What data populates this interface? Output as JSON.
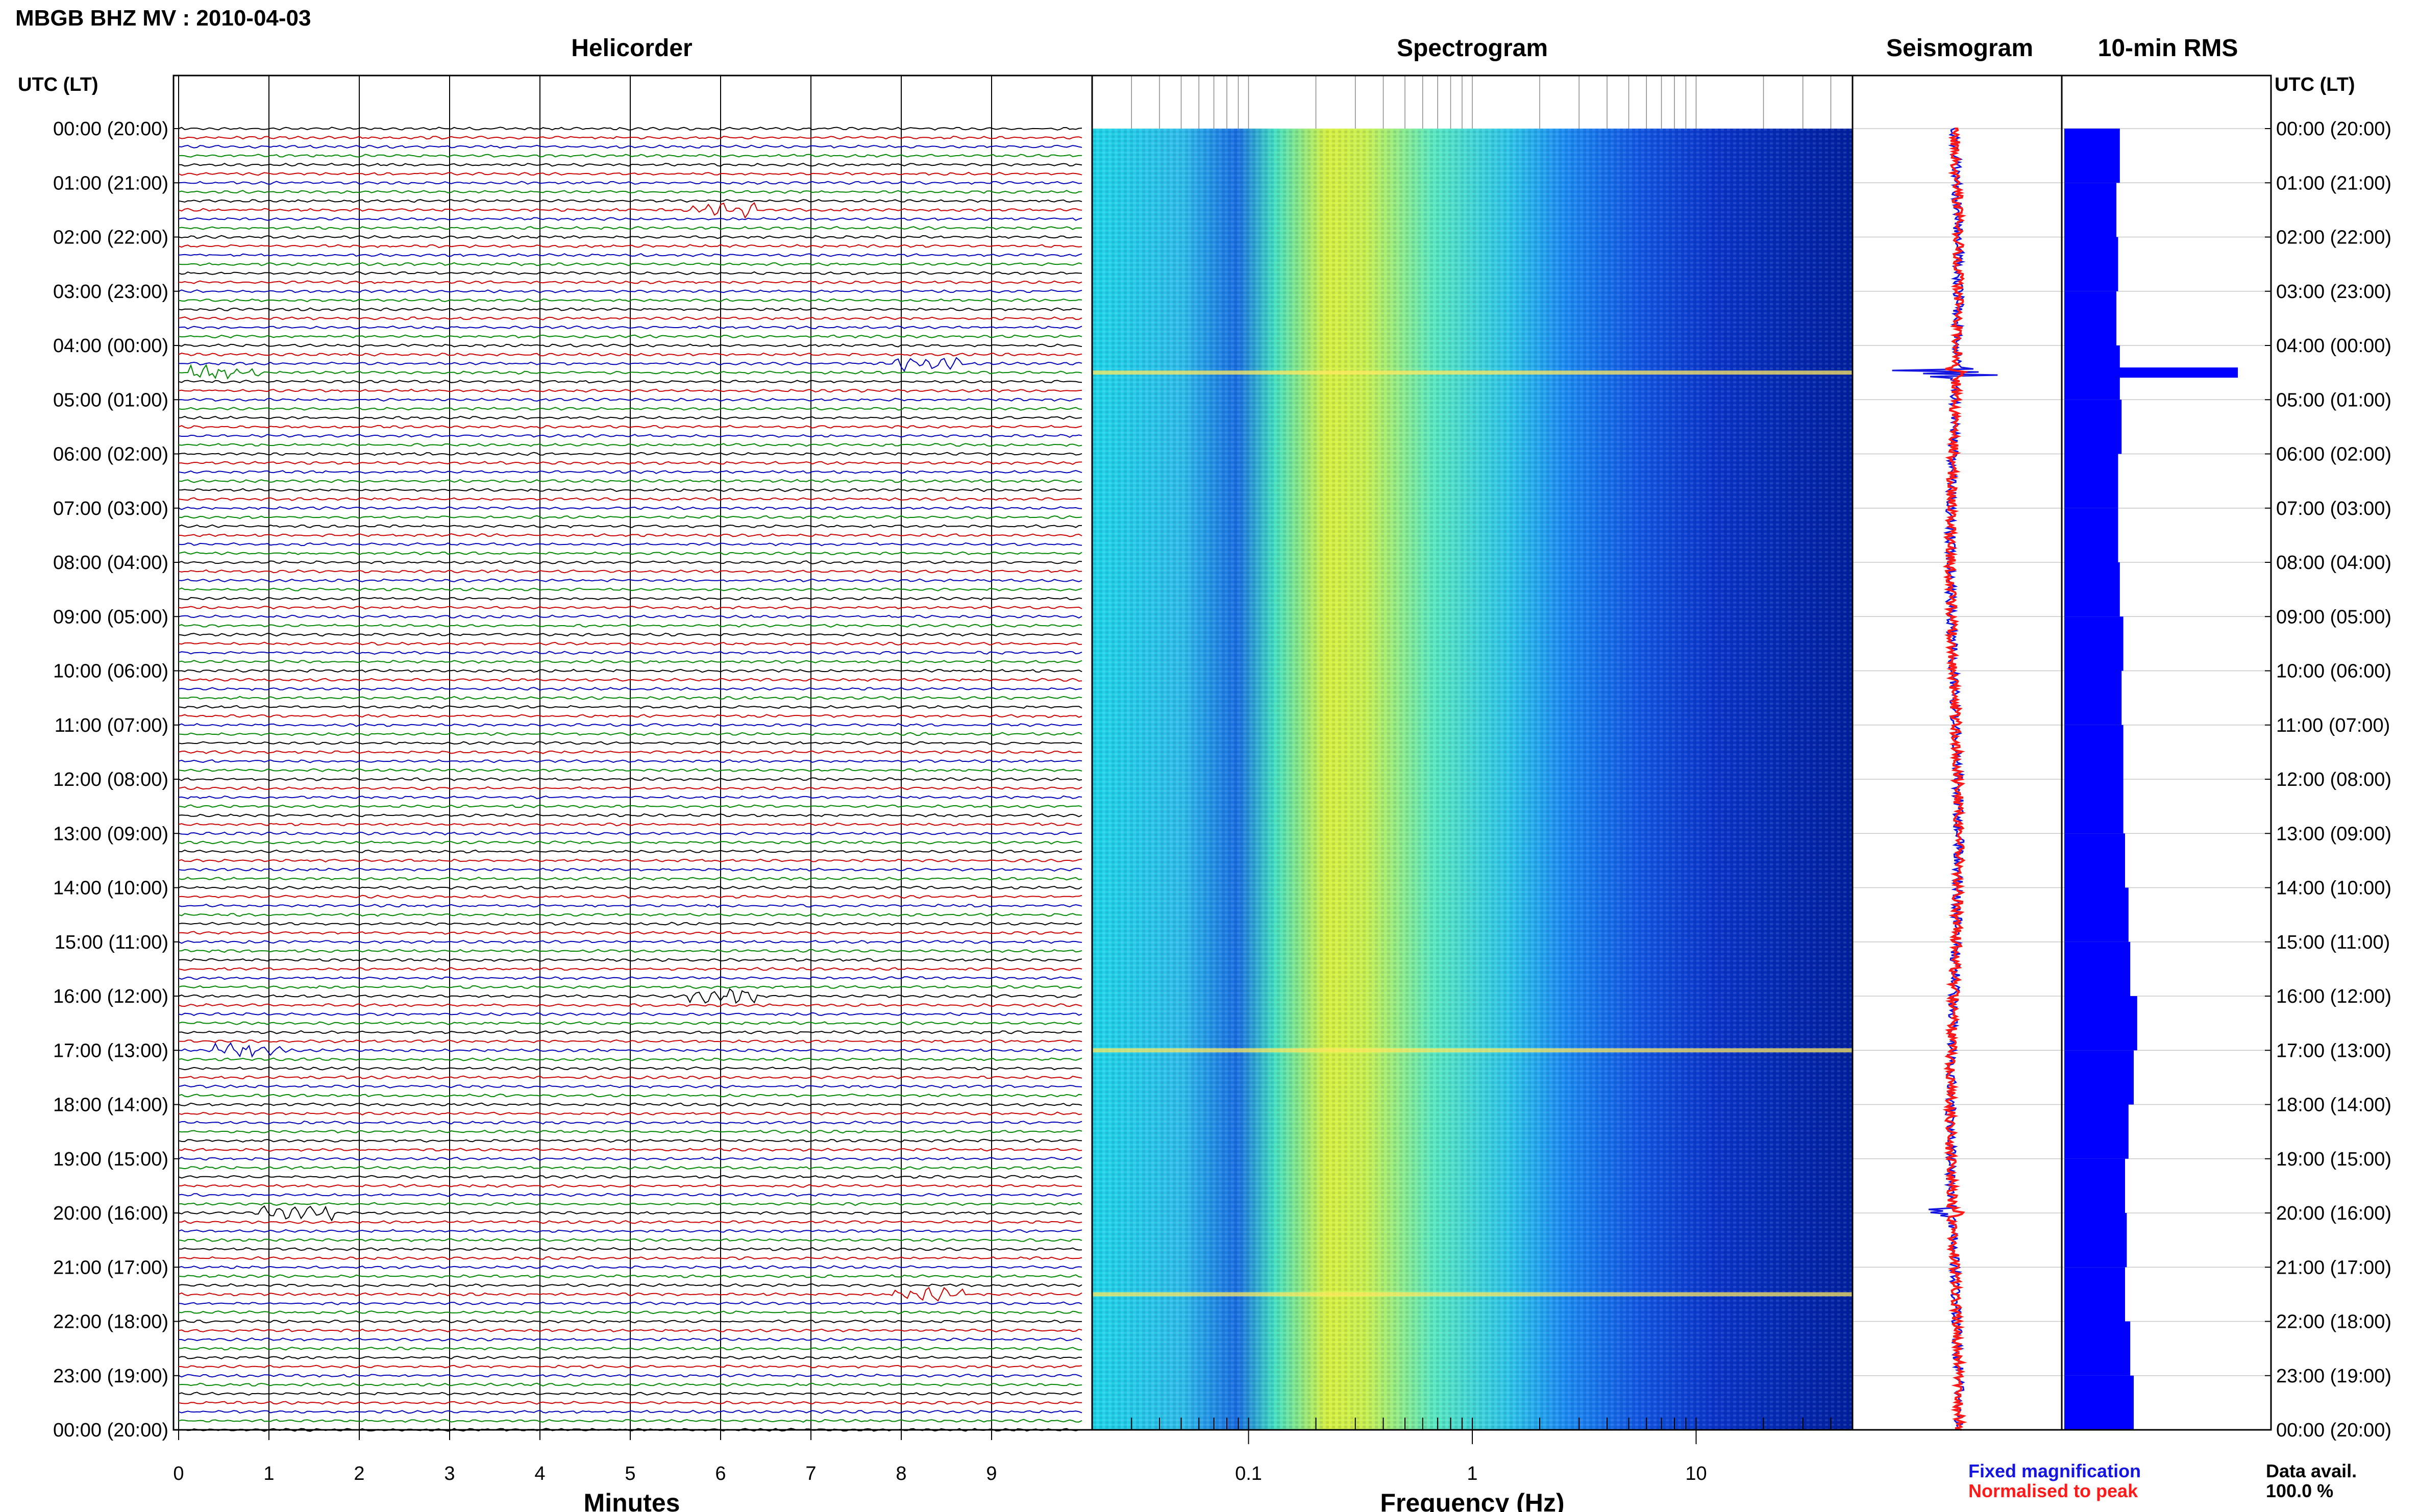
{
  "header": {
    "title": "MBGB BHZ MV : 2010-04-03"
  },
  "panels": {
    "helicorder": "Helicorder",
    "spectrogram": "Spectrogram",
    "seismogram": "Seismogram",
    "rms": "10-min RMS"
  },
  "time_axis": {
    "label_left": "UTC (LT)",
    "label_right": "UTC (LT)",
    "ticks": [
      "00:00 (20:00)",
      "01:00 (21:00)",
      "02:00 (22:00)",
      "03:00 (23:00)",
      "04:00 (00:00)",
      "05:00 (01:00)",
      "06:00 (02:00)",
      "07:00 (03:00)",
      "08:00 (04:00)",
      "09:00 (05:00)",
      "10:00 (06:00)",
      "11:00 (07:00)",
      "12:00 (08:00)",
      "13:00 (09:00)",
      "14:00 (10:00)",
      "15:00 (11:00)",
      "16:00 (12:00)",
      "17:00 (13:00)",
      "18:00 (14:00)",
      "19:00 (15:00)",
      "20:00 (16:00)",
      "21:00 (17:00)",
      "22:00 (18:00)",
      "23:00 (19:00)",
      "00:00 (20:00)"
    ]
  },
  "helicorder_axis": {
    "xlabel": "Minutes",
    "ticks": [
      "0",
      "1",
      "2",
      "3",
      "4",
      "5",
      "6",
      "7",
      "8",
      "9"
    ]
  },
  "spectrogram_axis": {
    "xlabel": "Frequency (Hz)",
    "ticks": [
      "0.1",
      "1",
      "10"
    ],
    "scale": "log"
  },
  "legend": {
    "fixed": "Fixed magnification",
    "normalised": "Normalised to peak",
    "fixed_color": "#1515e0",
    "normalised_color": "#ff1a1a"
  },
  "availability": {
    "label": "Data avail.",
    "value": "100.0 %"
  },
  "colors": {
    "trace_cycle": [
      "#000000",
      "#cc0000",
      "#0000bb",
      "#008800"
    ],
    "rms_bar": "#0000ff",
    "spectrogram_low": "#0000a0",
    "spectrogram_high": "#f0f020"
  },
  "chart_data": [
    {
      "type": "line",
      "title": "Helicorder",
      "xlabel": "Minutes",
      "xlim": [
        0,
        10
      ],
      "ylim": [
        "00:00",
        "24:00"
      ],
      "rows_per_hour": 6,
      "notable_events": [
        {
          "time": "01:30",
          "minute": 6.0
        },
        {
          "time": "04:20",
          "minute": 8.3
        },
        {
          "time": "04:30",
          "minute": 0.5
        },
        {
          "time": "16:00",
          "minute": 6.0
        },
        {
          "time": "17:00",
          "minute": 0.8
        },
        {
          "time": "20:00",
          "minute": 1.3
        },
        {
          "time": "21:30",
          "minute": 8.3
        }
      ]
    },
    {
      "type": "heatmap",
      "title": "Spectrogram",
      "xlabel": "Frequency (Hz)",
      "xscale": "log",
      "xlim": [
        0.02,
        50
      ],
      "peak_energy_hz": [
        0.2,
        0.4
      ],
      "broadband_event_times": [
        "04:30",
        "17:00",
        "21:30"
      ]
    },
    {
      "type": "line",
      "title": "Seismogram",
      "series": [
        {
          "name": "Fixed magnification"
        },
        {
          "name": "Normalised to peak"
        }
      ],
      "event_times": [
        "04:30",
        "20:00"
      ]
    },
    {
      "type": "bar",
      "title": "10-min RMS",
      "orientation": "horizontal",
      "hours": [
        0,
        1,
        2,
        3,
        4,
        5,
        6,
        7,
        8,
        9,
        10,
        11,
        12,
        13,
        14,
        15,
        16,
        17,
        18,
        19,
        20,
        21,
        22,
        23
      ],
      "relative_values": [
        0.32,
        0.3,
        0.31,
        0.3,
        0.32,
        0.33,
        0.31,
        0.31,
        0.32,
        0.34,
        0.33,
        0.34,
        0.34,
        0.35,
        0.37,
        0.38,
        0.42,
        0.4,
        0.37,
        0.35,
        0.36,
        0.35,
        0.38,
        0.4
      ],
      "peak": {
        "time": "04:30",
        "relative_value": 1.0
      }
    }
  ]
}
